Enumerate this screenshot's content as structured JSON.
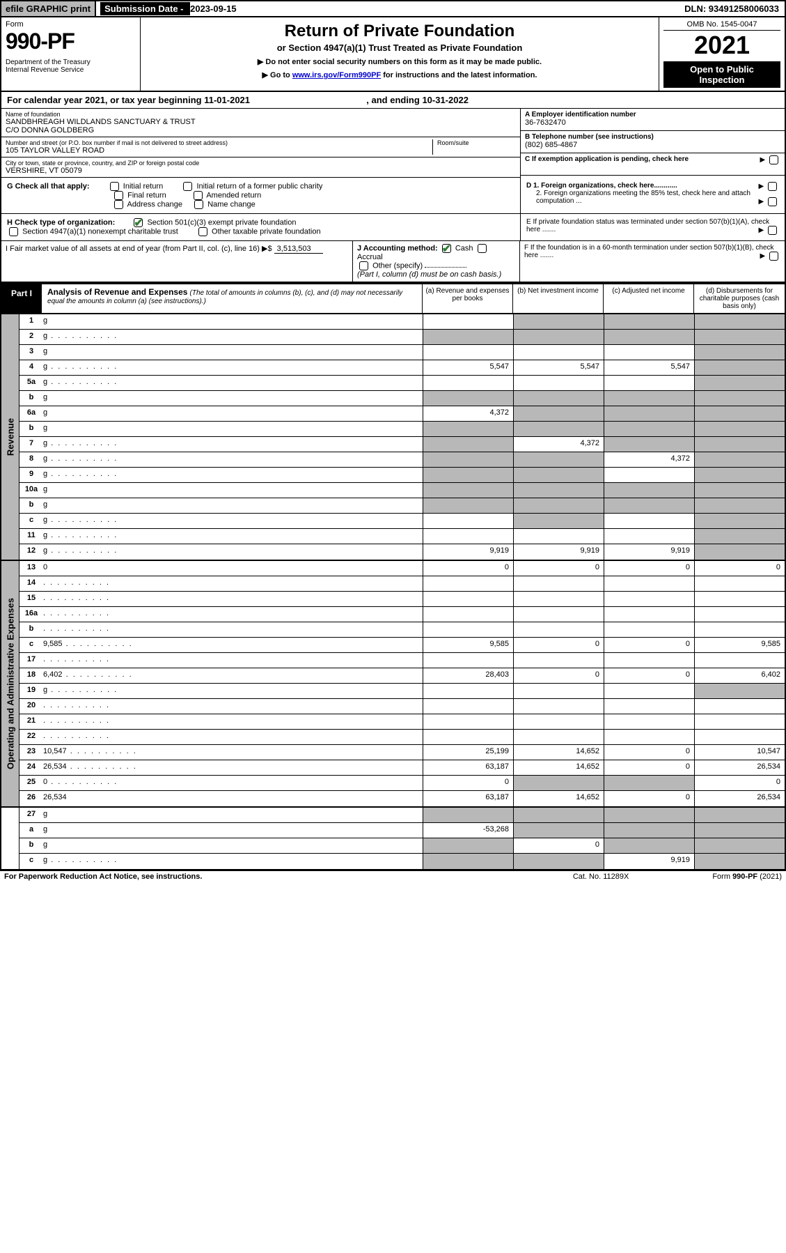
{
  "top": {
    "efile": "efile GRAPHIC print",
    "subdate_label": "Submission Date - ",
    "subdate_val": "2023-09-15",
    "dln": "DLN: 93491258006033"
  },
  "header": {
    "form_label": "Form",
    "form_num": "990-PF",
    "dept": "Department of the Treasury\nInternal Revenue Service",
    "title": "Return of Private Foundation",
    "subtitle": "or Section 4947(a)(1) Trust Treated as Private Foundation",
    "instr1": "▶ Do not enter social security numbers on this form as it may be made public.",
    "instr2_pre": "▶ Go to ",
    "instr2_link": "www.irs.gov/Form990PF",
    "instr2_post": " for instructions and the latest information.",
    "omb": "OMB No. 1545-0047",
    "year": "2021",
    "open": "Open to Public Inspection"
  },
  "cal": {
    "text_pre": "For calendar year 2021, or tax year beginning ",
    "begin": "11-01-2021",
    "text_mid": " , and ending ",
    "end": "10-31-2022"
  },
  "info": {
    "name_label": "Name of foundation",
    "name_val": "SANDBHREAGH WILDLANDS SANCTUARY & TRUST\nC/O DONNA GOLDBERG",
    "addr_label": "Number and street (or P.O. box number if mail is not delivered to street address)",
    "addr_val": "105 TAYLOR VALLEY ROAD",
    "room_label": "Room/suite",
    "city_label": "City or town, state or province, country, and ZIP or foreign postal code",
    "city_val": "VERSHIRE, VT  05079",
    "a_label": "A Employer identification number",
    "a_val": "36-7632470",
    "b_label": "B Telephone number (see instructions)",
    "b_val": "(802) 685-4867",
    "c_label": "C If exemption application is pending, check here",
    "d1_label": "D 1. Foreign organizations, check here............",
    "d2_label": "2. Foreign organizations meeting the 85% test, check here and attach computation ...",
    "e_label": "E  If private foundation status was terminated under section 507(b)(1)(A), check here .......",
    "f_label": "F  If the foundation is in a 60-month termination under section 507(b)(1)(B), check here ......."
  },
  "g": {
    "label": "G Check all that apply:",
    "opts": [
      "Initial return",
      "Initial return of a former public charity",
      "Final return",
      "Amended return",
      "Address change",
      "Name change"
    ]
  },
  "h": {
    "label": "H Check type of organization:",
    "opt1": "Section 501(c)(3) exempt private foundation",
    "opt2": "Section 4947(a)(1) nonexempt charitable trust",
    "opt3": "Other taxable private foundation"
  },
  "i": {
    "label": "I Fair market value of all assets at end of year (from Part II, col. (c), line 16) ▶$ ",
    "val": "3,513,503"
  },
  "j": {
    "label": "J Accounting method:",
    "cash": "Cash",
    "accrual": "Accrual",
    "other": "Other (specify)",
    "note": "(Part I, column (d) must be on cash basis.)"
  },
  "part1": {
    "label": "Part I",
    "title": "Analysis of Revenue and Expenses",
    "sub": "(The total of amounts in columns (b), (c), and (d) may not necessarily equal the amounts in column (a) (see instructions).)",
    "cols": [
      "(a)   Revenue and expenses per books",
      "(b)   Net investment income",
      "(c)   Adjusted net income",
      "(d)  Disbursements for charitable purposes (cash basis only)"
    ]
  },
  "side_labels": {
    "rev": "Revenue",
    "exp": "Operating and Administrative Expenses"
  },
  "rows": [
    {
      "sec": "rev",
      "n": "1",
      "d": "g",
      "a": "",
      "b": "g",
      "c": "g"
    },
    {
      "sec": "rev",
      "n": "2",
      "d": "g",
      "dots": 1,
      "a": "g",
      "b": "g",
      "c": "g"
    },
    {
      "sec": "rev",
      "n": "3",
      "d": "g",
      "a": "",
      "b": "",
      "c": ""
    },
    {
      "sec": "rev",
      "n": "4",
      "d": "g",
      "dots": 1,
      "a": "5,547",
      "b": "5,547",
      "c": "5,547"
    },
    {
      "sec": "rev",
      "n": "5a",
      "d": "g",
      "dots": 1,
      "a": "",
      "b": "",
      "c": ""
    },
    {
      "sec": "rev",
      "n": "b",
      "d": "g",
      "a": "g",
      "b": "g",
      "c": "g"
    },
    {
      "sec": "rev",
      "n": "6a",
      "d": "g",
      "a": "4,372",
      "b": "g",
      "c": "g"
    },
    {
      "sec": "rev",
      "n": "b",
      "d": "g",
      "a": "g",
      "b": "g",
      "c": "g"
    },
    {
      "sec": "rev",
      "n": "7",
      "d": "g",
      "dots": 1,
      "a": "g",
      "b": "4,372",
      "c": "g"
    },
    {
      "sec": "rev",
      "n": "8",
      "d": "g",
      "dots": 1,
      "a": "g",
      "b": "g",
      "c": "4,372"
    },
    {
      "sec": "rev",
      "n": "9",
      "d": "g",
      "dots": 1,
      "a": "g",
      "b": "g",
      "c": ""
    },
    {
      "sec": "rev",
      "n": "10a",
      "d": "g",
      "a": "g",
      "b": "g",
      "c": "g"
    },
    {
      "sec": "rev",
      "n": "b",
      "d": "g",
      "a": "g",
      "b": "g",
      "c": "g"
    },
    {
      "sec": "rev",
      "n": "c",
      "d": "g",
      "dots": 1,
      "a": "",
      "b": "g",
      "c": ""
    },
    {
      "sec": "rev",
      "n": "11",
      "d": "g",
      "dots": 1,
      "a": "",
      "b": "",
      "c": ""
    },
    {
      "sec": "rev",
      "n": "12",
      "d": "g",
      "dots": 1,
      "a": "9,919",
      "b": "9,919",
      "c": "9,919"
    },
    {
      "sec": "exp",
      "n": "13",
      "d": "0",
      "a": "0",
      "b": "0",
      "c": "0"
    },
    {
      "sec": "exp",
      "n": "14",
      "d": "",
      "dots": 1,
      "a": "",
      "b": "",
      "c": ""
    },
    {
      "sec": "exp",
      "n": "15",
      "d": "",
      "dots": 1,
      "a": "",
      "b": "",
      "c": ""
    },
    {
      "sec": "exp",
      "n": "16a",
      "d": "",
      "dots": 1,
      "a": "",
      "b": "",
      "c": ""
    },
    {
      "sec": "exp",
      "n": "b",
      "d": "",
      "dots": 1,
      "a": "",
      "b": "",
      "c": ""
    },
    {
      "sec": "exp",
      "n": "c",
      "d": "9,585",
      "dots": 1,
      "a": "9,585",
      "b": "0",
      "c": "0"
    },
    {
      "sec": "exp",
      "n": "17",
      "d": "",
      "dots": 1,
      "a": "",
      "b": "",
      "c": ""
    },
    {
      "sec": "exp",
      "n": "18",
      "d": "6,402",
      "dots": 1,
      "a": "28,403",
      "b": "0",
      "c": "0"
    },
    {
      "sec": "exp",
      "n": "19",
      "d": "g",
      "dots": 1,
      "a": "",
      "b": "",
      "c": ""
    },
    {
      "sec": "exp",
      "n": "20",
      "d": "",
      "dots": 1,
      "a": "",
      "b": "",
      "c": ""
    },
    {
      "sec": "exp",
      "n": "21",
      "d": "",
      "dots": 1,
      "a": "",
      "b": "",
      "c": ""
    },
    {
      "sec": "exp",
      "n": "22",
      "d": "",
      "dots": 1,
      "a": "",
      "b": "",
      "c": ""
    },
    {
      "sec": "exp",
      "n": "23",
      "d": "10,547",
      "dots": 1,
      "a": "25,199",
      "b": "14,652",
      "c": "0"
    },
    {
      "sec": "exp",
      "n": "24",
      "d": "26,534",
      "dots": 1,
      "a": "63,187",
      "b": "14,652",
      "c": "0"
    },
    {
      "sec": "exp",
      "n": "25",
      "d": "0",
      "dots": 1,
      "a": "0",
      "b": "g",
      "c": "g"
    },
    {
      "sec": "exp",
      "n": "26",
      "d": "26,534",
      "a": "63,187",
      "b": "14,652",
      "c": "0"
    },
    {
      "sec": "bot",
      "n": "27",
      "d": "g",
      "a": "g",
      "b": "g",
      "c": "g"
    },
    {
      "sec": "bot",
      "n": "a",
      "d": "g",
      "a": "-53,268",
      "b": "g",
      "c": "g"
    },
    {
      "sec": "bot",
      "n": "b",
      "d": "g",
      "a": "g",
      "b": "0",
      "c": "g"
    },
    {
      "sec": "bot",
      "n": "c",
      "d": "g",
      "dots": 1,
      "a": "g",
      "b": "g",
      "c": "9,919"
    }
  ],
  "footer": {
    "left": "For Paperwork Reduction Act Notice, see instructions.",
    "mid": "Cat. No. 11289X",
    "right": "Form 990-PF (2021)"
  }
}
